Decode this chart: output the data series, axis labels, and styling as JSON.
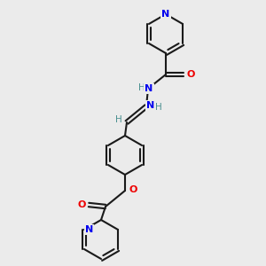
{
  "background_color": "#ebebeb",
  "bond_color": "#1a1a1a",
  "atom_colors": {
    "N": "#0000ee",
    "O": "#ee0000",
    "H": "#4a9090",
    "C": "#1a1a1a"
  },
  "figsize": [
    3.0,
    3.0
  ],
  "dpi": 100
}
